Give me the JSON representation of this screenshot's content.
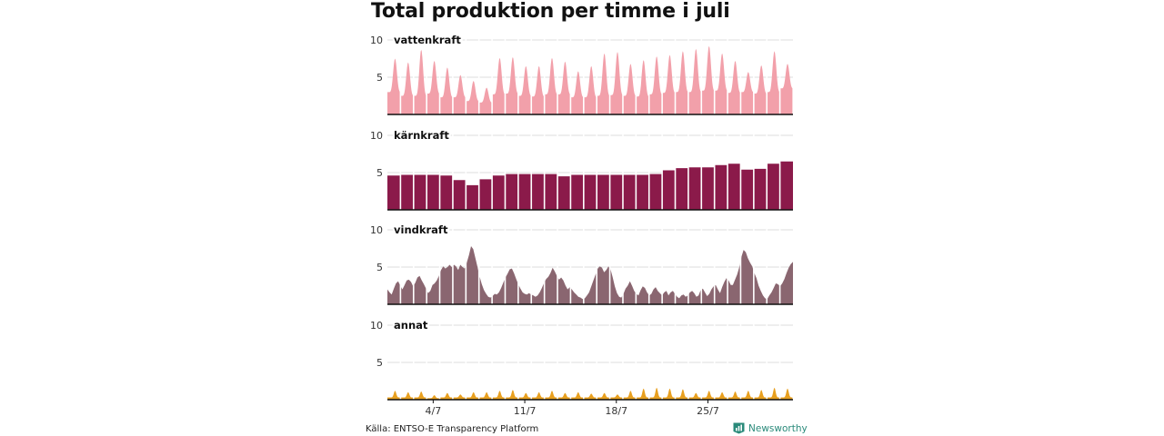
{
  "title": "Total produktion per timme i juli",
  "source": "Källa: ENTSO-E Transparency Platform",
  "brand": "Newsworthy",
  "brand_color": "#2a8a7a",
  "chart_data": [
    {
      "type": "area",
      "title": "vattenkraft",
      "color": "#f2a0aa",
      "ylim": [
        0,
        10
      ],
      "yticks": [
        5,
        10
      ],
      "xticks": [
        {
          "day": 4,
          "label": "4/7"
        },
        {
          "day": 11,
          "label": "11/7"
        },
        {
          "day": 18,
          "label": "18/7"
        },
        {
          "day": 25,
          "label": "25/7"
        }
      ],
      "x_unit": "day of July",
      "daily_peak": [
        7.5,
        7.0,
        8.7,
        7.2,
        6.3,
        5.3,
        4.5,
        3.6,
        7.6,
        7.7,
        6.5,
        6.5,
        7.6,
        7.1,
        5.8,
        6.5,
        8.2,
        8.4,
        6.8,
        7.3,
        7.8,
        8.0,
        8.5,
        8.8,
        9.2,
        8.2,
        7.2,
        5.7,
        6.6,
        8.5,
        6.8
      ],
      "daily_low": [
        3.0,
        2.5,
        2.5,
        2.8,
        2.3,
        2.3,
        1.8,
        1.6,
        2.7,
        2.8,
        2.5,
        2.4,
        2.7,
        2.7,
        2.3,
        2.3,
        2.5,
        2.6,
        2.5,
        2.4,
        2.7,
        2.9,
        3.0,
        3.0,
        3.2,
        3.2,
        2.9,
        3.0,
        2.8,
        3.0,
        3.5
      ]
    },
    {
      "type": "area",
      "title": "kärnkraft",
      "color": "#8b1a4a",
      "ylim": [
        0,
        10
      ],
      "yticks": [
        5,
        10
      ],
      "xticks": [
        {
          "day": 4,
          "label": "4/7"
        },
        {
          "day": 11,
          "label": "11/7"
        },
        {
          "day": 18,
          "label": "18/7"
        },
        {
          "day": 25,
          "label": "25/7"
        }
      ],
      "x_unit": "day of July",
      "daily_mean": [
        4.6,
        4.7,
        4.7,
        4.7,
        4.6,
        4.0,
        3.3,
        4.1,
        4.6,
        4.8,
        4.8,
        4.8,
        4.8,
        4.5,
        4.7,
        4.7,
        4.7,
        4.7,
        4.7,
        4.7,
        4.8,
        5.3,
        5.6,
        5.7,
        5.7,
        6.0,
        6.2,
        5.4,
        5.5,
        6.2,
        6.5
      ]
    },
    {
      "type": "area",
      "title": "vindkraft",
      "color": "#8a6670",
      "ylim": [
        0,
        10
      ],
      "yticks": [
        5,
        10
      ],
      "xticks": [
        {
          "day": 4,
          "label": "4/7"
        },
        {
          "day": 11,
          "label": "11/7"
        },
        {
          "day": 18,
          "label": "18/7"
        },
        {
          "day": 25,
          "label": "25/7"
        }
      ],
      "x_unit": "day of July",
      "hourly_approx_4h": [
        2.0,
        1.6,
        1.3,
        2.1,
        2.8,
        3.1,
        2.5,
        2.0,
        2.6,
        3.2,
        3.3,
        3.0,
        2.4,
        2.9,
        3.6,
        3.8,
        3.2,
        2.7,
        2.1,
        1.5,
        1.8,
        2.6,
        2.8,
        3.2,
        3.8,
        4.6,
        5.1,
        4.8,
        5.0,
        5.3,
        5.0,
        5.3,
        5.1,
        4.6,
        5.3,
        5.0,
        4.8,
        5.6,
        6.6,
        7.8,
        7.4,
        6.2,
        5.0,
        3.7,
        2.7,
        1.9,
        1.4,
        1.0,
        0.9,
        1.1,
        1.4,
        1.3,
        1.6,
        2.2,
        2.9,
        3.6,
        4.1,
        4.7,
        4.8,
        4.2,
        3.4,
        2.7,
        2.1,
        1.6,
        1.4,
        1.3,
        1.5,
        1.3,
        1.2,
        1.0,
        1.2,
        1.6,
        2.2,
        2.9,
        3.4,
        3.7,
        4.2,
        4.9,
        4.4,
        3.8,
        3.3,
        3.6,
        3.2,
        2.5,
        2.0,
        2.3,
        2.0,
        1.6,
        1.3,
        1.0,
        0.9,
        0.7,
        0.8,
        1.2,
        1.6,
        2.4,
        3.2,
        4.0,
        4.8,
        5.1,
        4.9,
        4.3,
        4.6,
        5.1,
        4.7,
        3.6,
        2.4,
        1.5,
        1.0,
        0.9,
        1.4,
        2.1,
        2.5,
        3.1,
        2.5,
        1.8,
        1.4,
        1.2,
        1.9,
        2.4,
        2.2,
        1.6,
        1.2,
        1.4,
        2.0,
        2.3,
        1.8,
        1.5,
        1.2,
        1.6,
        1.8,
        1.2,
        1.6,
        1.8,
        1.4,
        1.0,
        0.8,
        1.2,
        1.3,
        1.0,
        1.2,
        1.6,
        1.8,
        1.5,
        1.0,
        1.2,
        1.9,
        2.1,
        1.6,
        1.1,
        1.4,
        2.0,
        2.4,
        2.6,
        2.0,
        1.5,
        2.3,
        3.0,
        3.5,
        3.2,
        2.6,
        2.6,
        3.3,
        4.0,
        5.0,
        6.4,
        7.3,
        7.0,
        6.2,
        5.6,
        5.1,
        4.2,
        3.5,
        2.5,
        1.8,
        1.2,
        0.8,
        0.7,
        1.2,
        1.6,
        2.2,
        2.8,
        2.7,
        2.4,
        2.8,
        3.4,
        4.2,
        4.9,
        5.4,
        5.7
      ]
    },
    {
      "type": "area",
      "title": "annat",
      "color": "#e8a020",
      "ylim": [
        0,
        10
      ],
      "yticks": [
        5,
        10
      ],
      "xticks": [
        {
          "day": 4,
          "label": "4/7"
        },
        {
          "day": 11,
          "label": "11/7"
        },
        {
          "day": 18,
          "label": "18/7"
        },
        {
          "day": 25,
          "label": "25/7"
        }
      ],
      "x_unit": "day of July",
      "daily_peak": [
        1.2,
        1.0,
        1.1,
        0.6,
        0.9,
        0.7,
        1.0,
        1.0,
        1.2,
        1.3,
        0.9,
        1.0,
        1.2,
        0.9,
        1.0,
        0.8,
        0.9,
        0.7,
        1.2,
        1.5,
        1.6,
        1.5,
        1.4,
        0.9,
        1.2,
        1.0,
        1.1,
        1.2,
        1.3,
        1.6,
        1.5
      ],
      "daily_low": [
        0.3,
        0.3,
        0.3,
        0.2,
        0.3,
        0.3,
        0.3,
        0.3,
        0.3,
        0.3,
        0.3,
        0.3,
        0.3,
        0.3,
        0.3,
        0.3,
        0.3,
        0.3,
        0.3,
        0.3,
        0.3,
        0.3,
        0.3,
        0.3,
        0.3,
        0.3,
        0.3,
        0.3,
        0.3,
        0.3,
        0.3
      ]
    }
  ]
}
